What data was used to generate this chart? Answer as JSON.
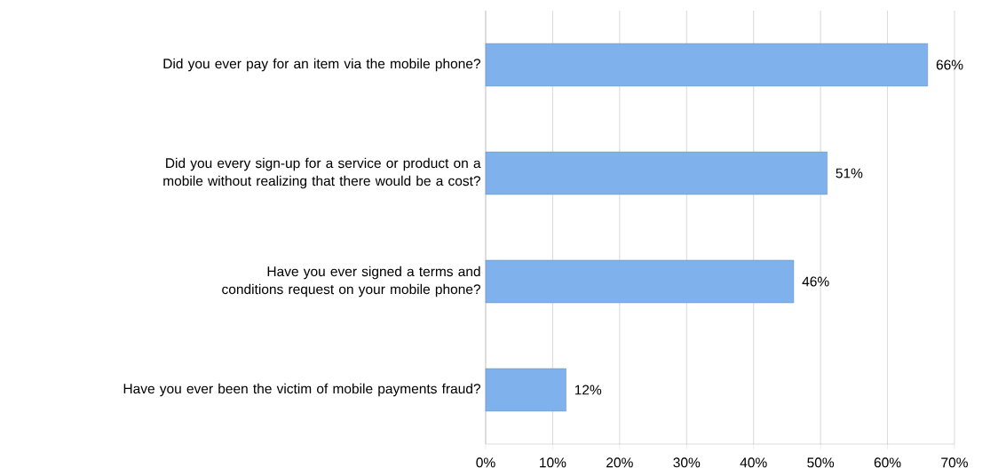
{
  "chart_data": {
    "type": "bar",
    "orientation": "horizontal",
    "categories": [
      "Did you ever pay for an item via the mobile phone?",
      "Did you every sign-up for a service or product on a mobile without realizing that there would be a cost?",
      "Have you ever signed a terms and conditions request on your mobile phone?",
      "Have you ever been the victim of mobile payments fraud?"
    ],
    "values": [
      66,
      51,
      46,
      12
    ],
    "value_labels": [
      "66%",
      "51%",
      "46%",
      "12%"
    ],
    "color": "#7fb2ec",
    "xlim": [
      0,
      70
    ],
    "xticks": [
      {
        "value": 0,
        "label": "0%"
      },
      {
        "value": 10,
        "label": "10%"
      },
      {
        "value": 20,
        "label": "20%"
      },
      {
        "value": 30,
        "label": "30%"
      },
      {
        "value": 40,
        "label": "40%"
      },
      {
        "value": 50,
        "label": "50%"
      },
      {
        "value": 60,
        "label": "60%"
      },
      {
        "value": 70,
        "label": "70%"
      }
    ],
    "grid": "x"
  }
}
